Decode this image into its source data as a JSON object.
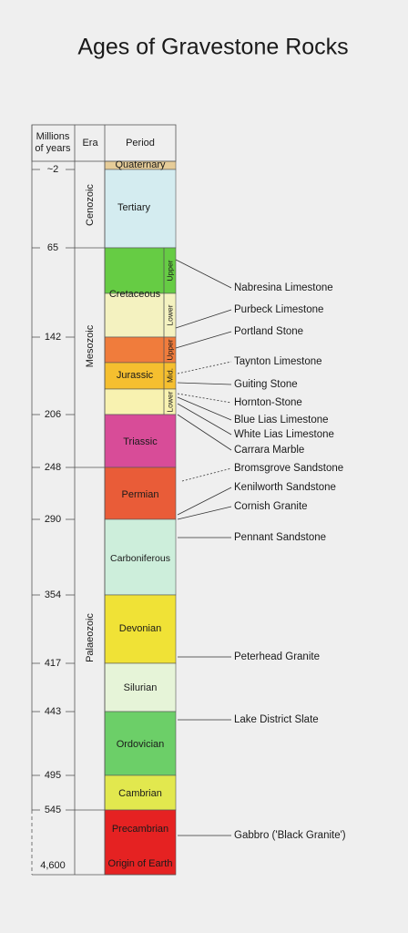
{
  "title": "Ages of Gravestone Rocks",
  "header": {
    "millions": [
      "Millions",
      "of years"
    ],
    "era": "Era",
    "period": "Period"
  },
  "ages": [
    "~2",
    "65",
    "142",
    "206",
    "248",
    "290",
    "354",
    "417",
    "443",
    "495",
    "545",
    "4,600"
  ],
  "eras": [
    "Cenozoic",
    "Mesozoic",
    "Palaeozoic"
  ],
  "periods": [
    "Quaternary",
    "Tertiary",
    "Cretaceous",
    "Jurassic",
    "Triassic",
    "Permian",
    "Carboniferous",
    "Devonian",
    "Silurian",
    "Ordovician",
    "Cambrian",
    "Precambrian",
    "Origin of Earth"
  ],
  "subdivisions": [
    "Upper",
    "Lower",
    "Upper",
    "Mid.",
    "Lower"
  ],
  "rocks": [
    "Nabresina Limestone",
    "Purbeck Limestone",
    "Portland Stone",
    "Taynton Limestone",
    "Guiting Stone",
    "Hornton-Stone",
    "Blue Lias Limestone",
    "White Lias Limestone",
    "Carrara Marble",
    "Bromsgrove Sandstone",
    "Kenilworth Sandstone",
    "Cornish Granite",
    "Pennant Sandstone",
    "Peterhead Granite",
    "Lake District Slate",
    "Gabbro ('Black Granite')"
  ]
}
